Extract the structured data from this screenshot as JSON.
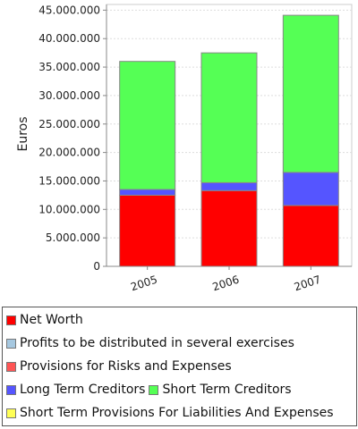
{
  "chart_data": {
    "type": "bar",
    "stacked": true,
    "title": "",
    "xlabel": "",
    "ylabel": "Euros",
    "ylim": [
      0,
      46000000
    ],
    "yticks": [
      0,
      5000000,
      10000000,
      15000000,
      20000000,
      25000000,
      30000000,
      35000000,
      40000000,
      45000000
    ],
    "ytick_labels": [
      "0",
      "5.000.000",
      "10.000.000",
      "15.000.000",
      "20.000.000",
      "25.000.000",
      "30.000.000",
      "35.000.000",
      "40.000.000",
      "45.000.000"
    ],
    "grid": true,
    "legend_position": "bottom",
    "categories": [
      "2005",
      "2006",
      "2007"
    ],
    "series": [
      {
        "name": "Net Worth",
        "color": "#ff0000",
        "values": [
          12500000,
          13300000,
          10700000
        ]
      },
      {
        "name": "Profits to be distributed in several exercises",
        "color": "#a6c8e0",
        "values": [
          0,
          0,
          0
        ]
      },
      {
        "name": "Provisions for Risks and Expenses",
        "color": "#ff5555",
        "values": [
          0,
          0,
          0
        ]
      },
      {
        "name": "Long Term Creditors",
        "color": "#5555ff",
        "values": [
          1000000,
          1400000,
          5800000
        ]
      },
      {
        "name": "Short Term Creditors",
        "color": "#55ff55",
        "values": [
          22500000,
          22800000,
          27600000
        ]
      },
      {
        "name": "Short Term Provisions For Liabilities And Expenses",
        "color": "#ffff55",
        "values": [
          0,
          0,
          0
        ]
      }
    ]
  }
}
